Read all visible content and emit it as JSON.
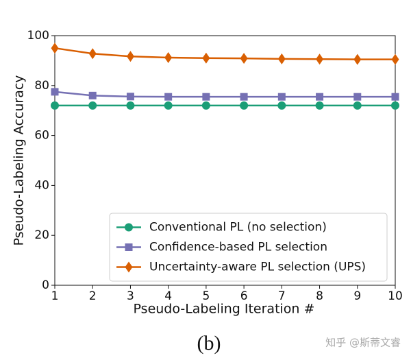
{
  "chart_data": {
    "type": "line",
    "xlabel": "Pseudo-Labeling Iteration #",
    "ylabel": "Pseudo-Labeling Accuracy",
    "caption": "(b)",
    "watermark": "知乎 @斯蒂文睿",
    "x": [
      1,
      2,
      3,
      4,
      5,
      6,
      7,
      8,
      9,
      10
    ],
    "xlim": [
      1,
      10
    ],
    "xticks": [
      1,
      2,
      3,
      4,
      5,
      6,
      7,
      8,
      9,
      10
    ],
    "ylim": [
      0,
      100
    ],
    "yticks": [
      0,
      20,
      40,
      60,
      80,
      100
    ],
    "legend": "lower right",
    "series": [
      {
        "name": "Conventional PL (no selection)",
        "color": "#1b9e77",
        "marker": "circle",
        "values": [
          72,
          72,
          72,
          72,
          72,
          72,
          72,
          72,
          72,
          72
        ]
      },
      {
        "name": "Confidence-based PL selection",
        "color": "#7570b3",
        "marker": "square",
        "values": [
          77.5,
          76,
          75.6,
          75.5,
          75.5,
          75.5,
          75.5,
          75.5,
          75.5,
          75.5
        ]
      },
      {
        "name": "Uncertainty-aware PL selection (UPS)",
        "color": "#d95f02",
        "marker": "diamond",
        "values": [
          95,
          92.8,
          91.7,
          91.2,
          91,
          90.9,
          90.7,
          90.6,
          90.5,
          90.5
        ]
      }
    ]
  }
}
